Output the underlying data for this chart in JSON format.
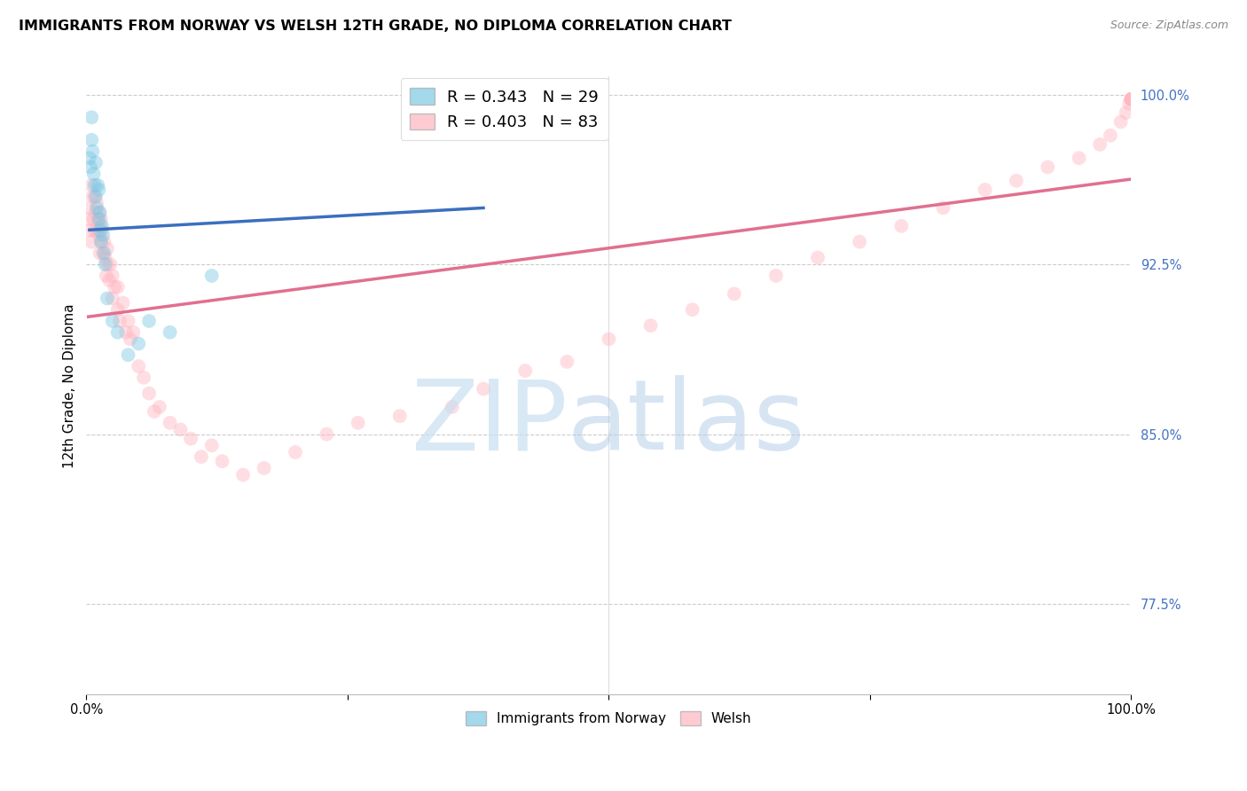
{
  "title": "IMMIGRANTS FROM NORWAY VS WELSH 12TH GRADE, NO DIPLOMA CORRELATION CHART",
  "source": "Source: ZipAtlas.com",
  "ylabel": "12th Grade, No Diploma",
  "legend_label1": "Immigrants from Norway",
  "legend_label2": "Welsh",
  "R1": 0.343,
  "N1": 29,
  "R2": 0.403,
  "N2": 83,
  "color1": "#7ec8e3",
  "color2": "#ffb6c1",
  "line_color1": "#3a6fbf",
  "line_color2": "#e07090",
  "xlim": [
    0.0,
    1.0
  ],
  "ylim": [
    0.735,
    1.008
  ],
  "yticks": [
    0.775,
    0.85,
    0.925,
    1.0
  ],
  "ytick_labels": [
    "77.5%",
    "85.0%",
    "92.5%",
    "100.0%"
  ],
  "norway_x": [
    0.003,
    0.004,
    0.005,
    0.005,
    0.006,
    0.007,
    0.008,
    0.009,
    0.009,
    0.01,
    0.011,
    0.012,
    0.012,
    0.013,
    0.013,
    0.014,
    0.015,
    0.016,
    0.017,
    0.018,
    0.02,
    0.025,
    0.03,
    0.04,
    0.05,
    0.06,
    0.08,
    0.12,
    0.38
  ],
  "norway_y": [
    0.972,
    0.968,
    0.98,
    0.99,
    0.975,
    0.965,
    0.96,
    0.97,
    0.955,
    0.95,
    0.96,
    0.945,
    0.958,
    0.948,
    0.94,
    0.935,
    0.942,
    0.938,
    0.93,
    0.925,
    0.91,
    0.9,
    0.895,
    0.885,
    0.89,
    0.9,
    0.895,
    0.92,
    0.99
  ],
  "welsh_x": [
    0.002,
    0.003,
    0.004,
    0.005,
    0.005,
    0.006,
    0.007,
    0.008,
    0.008,
    0.009,
    0.01,
    0.01,
    0.011,
    0.012,
    0.012,
    0.013,
    0.013,
    0.014,
    0.014,
    0.015,
    0.016,
    0.017,
    0.018,
    0.019,
    0.02,
    0.02,
    0.022,
    0.023,
    0.025,
    0.025,
    0.027,
    0.03,
    0.03,
    0.032,
    0.035,
    0.038,
    0.04,
    0.042,
    0.045,
    0.05,
    0.055,
    0.06,
    0.065,
    0.07,
    0.08,
    0.09,
    0.1,
    0.11,
    0.12,
    0.13,
    0.15,
    0.17,
    0.2,
    0.23,
    0.26,
    0.3,
    0.35,
    0.38,
    0.42,
    0.46,
    0.5,
    0.54,
    0.58,
    0.62,
    0.66,
    0.7,
    0.74,
    0.78,
    0.82,
    0.86,
    0.89,
    0.92,
    0.95,
    0.97,
    0.98,
    0.99,
    0.995,
    0.998,
    1.0,
    1.0,
    1.0,
    1.0,
    1.0
  ],
  "welsh_y": [
    0.945,
    0.95,
    0.94,
    0.96,
    0.935,
    0.955,
    0.945,
    0.94,
    0.955,
    0.948,
    0.952,
    0.94,
    0.945,
    0.938,
    0.948,
    0.942,
    0.93,
    0.945,
    0.935,
    0.94,
    0.93,
    0.935,
    0.928,
    0.92,
    0.932,
    0.925,
    0.918,
    0.925,
    0.92,
    0.91,
    0.915,
    0.905,
    0.915,
    0.9,
    0.908,
    0.895,
    0.9,
    0.892,
    0.895,
    0.88,
    0.875,
    0.868,
    0.86,
    0.862,
    0.855,
    0.852,
    0.848,
    0.84,
    0.845,
    0.838,
    0.832,
    0.835,
    0.842,
    0.85,
    0.855,
    0.858,
    0.862,
    0.87,
    0.878,
    0.882,
    0.892,
    0.898,
    0.905,
    0.912,
    0.92,
    0.928,
    0.935,
    0.942,
    0.95,
    0.958,
    0.962,
    0.968,
    0.972,
    0.978,
    0.982,
    0.988,
    0.992,
    0.996,
    0.998,
    0.998,
    0.998,
    0.998,
    0.998
  ],
  "marker_size": 130,
  "marker_alpha": 0.45,
  "background_color": "#ffffff",
  "grid_color": "#cccccc",
  "title_fontsize": 11.5,
  "axis_label_fontsize": 11,
  "tick_fontsize": 10.5,
  "legend_fontsize": 13,
  "source_fontsize": 9
}
